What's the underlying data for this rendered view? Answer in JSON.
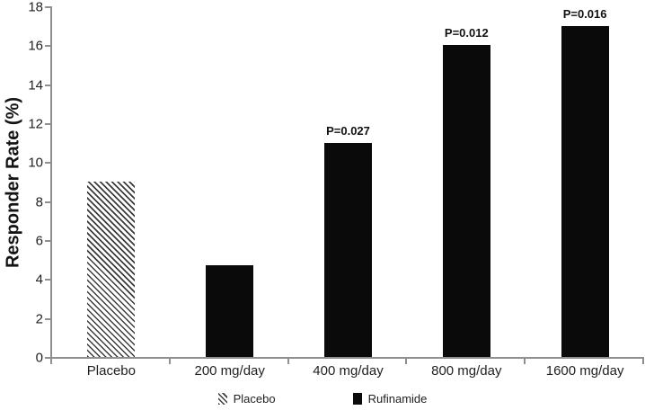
{
  "figure": {
    "background": "#ffffff",
    "colors": {
      "bar": "#0a0a0a",
      "axis": "#8f8f8f",
      "text": "#1f1f1f",
      "hatch": "#3b3b3b"
    }
  },
  "chart_data": {
    "type": "bar",
    "title": "",
    "xlabel": "",
    "ylabel": "Responder Rate (%)",
    "ylim": [
      0,
      18
    ],
    "yticks": [
      0,
      2,
      4,
      6,
      8,
      10,
      12,
      14,
      16,
      18
    ],
    "grid": false,
    "legend_position": "bottom-center",
    "categories": [
      "Placebo",
      "200 mg/day",
      "400 mg/day",
      "800 mg/day",
      "1600 mg/day"
    ],
    "values": [
      9,
      4.7,
      11,
      16,
      17
    ],
    "bar_styles": [
      "hatched",
      "solid",
      "solid",
      "solid",
      "solid"
    ],
    "annotations": [
      "",
      "",
      "P=0.027",
      "P=0.012",
      "P=0.016"
    ],
    "legend": [
      {
        "label": "Placebo",
        "style": "hatched"
      },
      {
        "label": "Rufinamide",
        "style": "solid"
      }
    ]
  }
}
